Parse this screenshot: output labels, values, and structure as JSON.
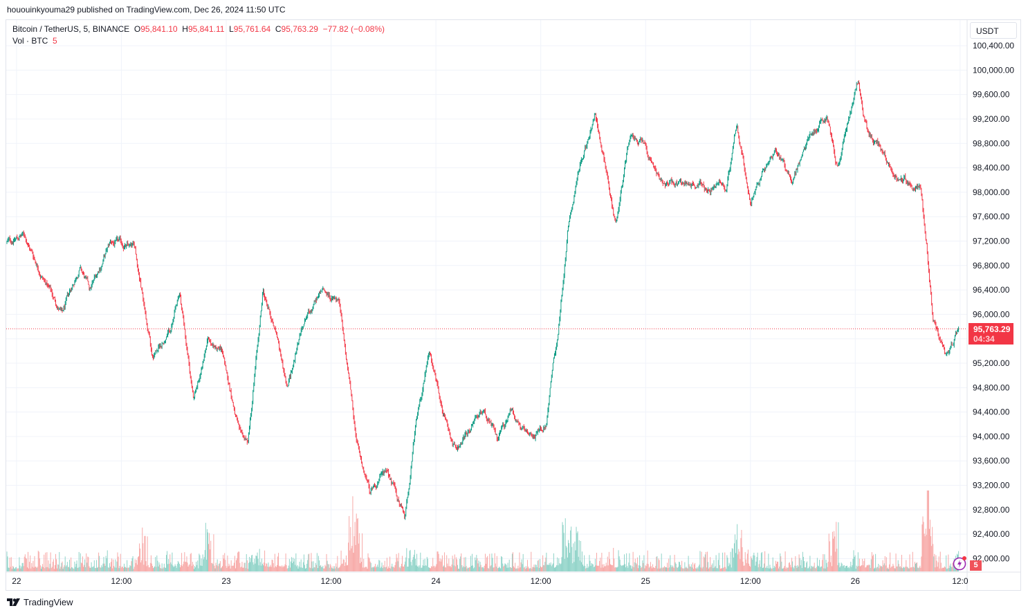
{
  "header": {
    "published": "hououinkyouma29 published on TradingView.com, Dec 26, 2024 11:50 UTC"
  },
  "legend": {
    "symbol": "Bitcoin / TetherUS, 5, BINANCE",
    "open_label": "O",
    "open": "95,841.10",
    "high_label": "H",
    "high": "95,841.11",
    "low_label": "L",
    "low": "95,761.64",
    "close_label": "C",
    "close": "95,763.29",
    "change": "−77.82 (−0.08%)",
    "vol_label": "Vol · BTC",
    "vol_value": "5"
  },
  "currency_button": "USDT",
  "last_price": {
    "price": "95,763.29",
    "countdown": "04:34"
  },
  "volume_badge": "5",
  "logo_text": "TradingView",
  "colors": {
    "up": "#089981",
    "down": "#f23645",
    "vol_up": "#8fd3c8",
    "vol_down": "#f7a9a7",
    "grid": "#f0f3fa"
  },
  "chart_data": {
    "type": "candlestick",
    "title": "Bitcoin / TetherUS, 5, BINANCE",
    "interval_minutes": 5,
    "x_unit": "hours since Dec 22 00:00 UTC",
    "xlim": [
      -1.1,
      108.8
    ],
    "ylim": [
      91790,
      100820
    ],
    "y_ticks": [
      92000,
      92400,
      92800,
      93200,
      93600,
      94000,
      94400,
      94800,
      95200,
      95600,
      96000,
      96400,
      96800,
      97200,
      97600,
      98000,
      98400,
      98800,
      99200,
      99600,
      100000,
      100400
    ],
    "y_tick_labels": [
      "92,000.00",
      "92,400.00",
      "92,800.00",
      "93,200.00",
      "93,600.00",
      "94,000.00",
      "94,400.00",
      "94,800.00",
      "95,200.00",
      "",
      "96,000.00",
      "96,400.00",
      "96,800.00",
      "97,200.00",
      "97,600.00",
      "98,000.00",
      "98,400.00",
      "98,800.00",
      "99,200.00",
      "99,600.00",
      "100,000.00",
      "100,400.00"
    ],
    "x_ticks": [
      {
        "h": 0,
        "label": "22"
      },
      {
        "h": 12,
        "label": "12:00"
      },
      {
        "h": 24,
        "label": "23"
      },
      {
        "h": 36,
        "label": "12:00"
      },
      {
        "h": 48,
        "label": "24"
      },
      {
        "h": 60,
        "label": "12:00"
      },
      {
        "h": 72,
        "label": "25"
      },
      {
        "h": 84,
        "label": "12:00"
      },
      {
        "h": 96,
        "label": "26"
      },
      {
        "h": 108,
        "label": "12:0"
      }
    ],
    "last_close": 95763.29,
    "close_path": [
      [
        -1.1,
        97180
      ],
      [
        0.87,
        97300
      ],
      [
        2.85,
        96670
      ],
      [
        5.23,
        95990
      ],
      [
        7.21,
        96780
      ],
      [
        8.4,
        96390
      ],
      [
        10.77,
        97180
      ],
      [
        13.54,
        97070
      ],
      [
        14.73,
        96050
      ],
      [
        15.52,
        95360
      ],
      [
        17.5,
        95700
      ],
      [
        18.69,
        96270
      ],
      [
        20.28,
        94570
      ],
      [
        21.86,
        95590
      ],
      [
        23.44,
        95480
      ],
      [
        25.42,
        94120
      ],
      [
        26.45,
        93890
      ],
      [
        28.2,
        96390
      ],
      [
        29.78,
        95700
      ],
      [
        30.97,
        94800
      ],
      [
        32.95,
        95930
      ],
      [
        34.93,
        96390
      ],
      [
        36.91,
        96160
      ],
      [
        38.1,
        94910
      ],
      [
        38.89,
        93890
      ],
      [
        40.48,
        93090
      ],
      [
        42.46,
        93430
      ],
      [
        44.44,
        92640
      ],
      [
        45.62,
        94120
      ],
      [
        47.2,
        95360
      ],
      [
        48.79,
        94340
      ],
      [
        50.37,
        93770
      ],
      [
        53.54,
        94460
      ],
      [
        55.13,
        93890
      ],
      [
        56.71,
        94460
      ],
      [
        58.69,
        93890
      ],
      [
        60.67,
        94230
      ],
      [
        62.26,
        96050
      ],
      [
        63.05,
        97300
      ],
      [
        64.63,
        98550
      ],
      [
        66.22,
        99230
      ],
      [
        67.41,
        98430
      ],
      [
        68.59,
        97410
      ],
      [
        70.18,
        98890
      ],
      [
        71.76,
        98770
      ],
      [
        73.74,
        98090
      ],
      [
        75.72,
        98150
      ],
      [
        78.89,
        98090
      ],
      [
        81.27,
        98090
      ],
      [
        82.45,
        99110
      ],
      [
        84.04,
        97750
      ],
      [
        84.83,
        98200
      ],
      [
        86.81,
        98720
      ],
      [
        88.79,
        98200
      ],
      [
        90.77,
        98890
      ],
      [
        92.75,
        99230
      ],
      [
        93.94,
        98430
      ],
      [
        96.32,
        99800
      ],
      [
        97.5,
        98890
      ],
      [
        99.09,
        98660
      ],
      [
        101.07,
        98200
      ],
      [
        103.44,
        98090
      ],
      [
        104.23,
        97070
      ],
      [
        104.87,
        95930
      ],
      [
        106.21,
        95310
      ],
      [
        107.83,
        95763.29
      ]
    ],
    "volume_spikes_hours": [
      14.5,
      22,
      38.5,
      39,
      63,
      64,
      82.5,
      93.5,
      104.2,
      104.5
    ]
  }
}
